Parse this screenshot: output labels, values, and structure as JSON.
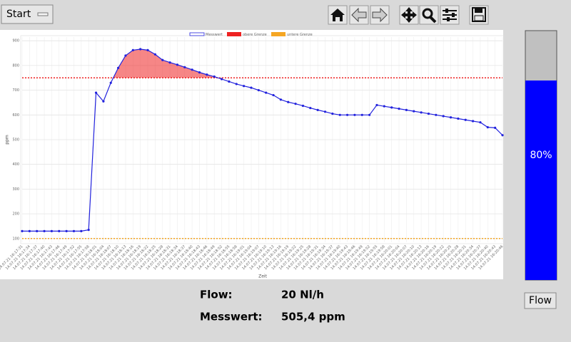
{
  "start_button": "Start",
  "flow_button": "Flow",
  "gauge": {
    "value": 80,
    "value_label": "80%"
  },
  "readings": [
    {
      "label": "Flow:",
      "value": "20 Nl/h"
    },
    {
      "label": "Messwert:",
      "value": "505,4 ppm"
    }
  ],
  "chart_data": {
    "type": "line",
    "x_label": "Zeit",
    "y_label": "ppm",
    "categories": [
      "14.07.21 16:17:31",
      "14.07.21 16:17:34",
      "14.07.21 16:17:37",
      "14.07.21 16:17:40",
      "14.07.21 16:17:43",
      "14.07.21 16:17:46",
      "14.07.21 16:17:49",
      "14.07.21 16:17:52",
      "14.07.21 16:17:55",
      "14.07.21 16:17:58",
      "14.07.21 16:18:01",
      "14.07.21 16:18:04",
      "14.07.21 16:18:07",
      "14.07.21 16:18:10",
      "14.07.21 16:18:13",
      "14.07.21 16:18:16",
      "14.07.21 16:18:19",
      "14.07.21 16:18:22",
      "14.07.21 16:18:25",
      "14.07.21 16:18:28",
      "14.07.21 16:18:31",
      "14.07.21 16:18:34",
      "14.07.21 16:18:37",
      "14.07.21 16:18:40",
      "14.07.21 16:18:43",
      "14.07.21 16:18:46",
      "14.07.21 16:18:49",
      "14.07.21 16:18:52",
      "14.07.21 16:18:55",
      "14.07.21 16:18:58",
      "14.07.21 16:19:01",
      "14.07.21 16:19:04",
      "14.07.21 16:19:07",
      "14.07.21 16:19:10",
      "14.07.21 16:19:13",
      "14.07.21 16:19:16",
      "14.07.21 16:19:19",
      "14.07.21 16:19:22",
      "14.07.21 16:19:25",
      "14.07.21 16:19:28",
      "14.07.21 16:19:31",
      "14.07.21 16:19:34",
      "14.07.21 16:19:37",
      "14.07.21 16:19:40",
      "14.07.21 16:19:43",
      "14.07.21 16:19:46",
      "14.07.21 16:19:49",
      "14.07.21 16:19:52",
      "14.07.21 16:19:55",
      "14.07.21 16:19:58",
      "14.07.21 16:20:01",
      "14.07.21 16:20:04",
      "14.07.21 16:20:07",
      "14.07.21 16:20:10",
      "14.07.21 16:20:13",
      "14.07.21 16:20:16",
      "14.07.21 16:20:19",
      "14.07.21 16:20:22",
      "14.07.21 16:20:25",
      "14.07.21 16:20:28",
      "14.07.21 16:20:31",
      "14.07.21 16:20:34",
      "14.07.21 16:20:37",
      "14.07.21 16:20:40",
      "14.07.21 16:20:43",
      "14.07.21 16:20:46"
    ],
    "series": [
      {
        "name": "Messwert",
        "color": "#2222dd",
        "values": [
          130,
          130,
          130,
          130,
          130,
          130,
          130,
          130,
          130,
          135,
          690,
          655,
          730,
          790,
          840,
          862,
          866,
          862,
          845,
          822,
          812,
          803,
          793,
          783,
          772,
          763,
          755,
          745,
          735,
          725,
          717,
          710,
          700,
          690,
          680,
          662,
          652,
          645,
          637,
          628,
          620,
          613,
          605,
          600,
          600,
          600,
          600,
          600,
          640,
          635,
          630,
          625,
          620,
          615,
          610,
          605,
          600,
          595,
          590,
          585,
          580,
          575,
          570,
          550,
          548,
          518
        ]
      }
    ],
    "thresholds": [
      {
        "name": "obere Grenze",
        "color": "#ee2222",
        "value": 750
      },
      {
        "name": "untere Grenze",
        "color": "#f5a623",
        "value": 100
      }
    ],
    "ylim": [
      85,
      915
    ],
    "yticks": [
      100,
      200,
      300,
      400,
      500,
      600,
      700,
      800,
      900
    ],
    "grid": true
  }
}
